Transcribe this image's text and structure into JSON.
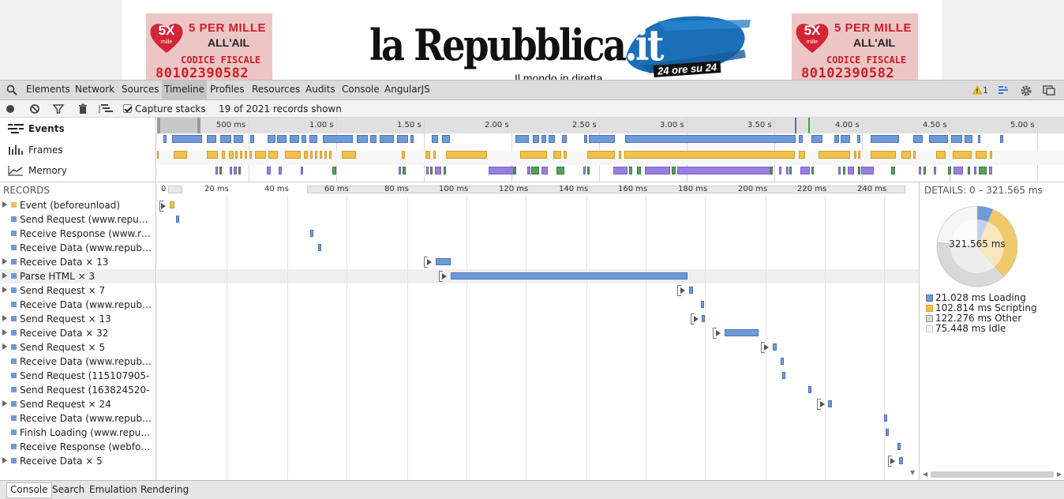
{
  "webpage": {
    "ad_left": {
      "badge": "5X",
      "badge_sub": "mille",
      "line1": "5 PER MILLE",
      "line2": "ALL'AIL",
      "line3": "CODICE FISCALE",
      "line4": "80102390582"
    },
    "ad_right": {
      "badge": "5X",
      "badge_sub": "mille",
      "line1": "5 PER MILLE",
      "line2": "ALL'AIL",
      "line3": "CODICE FISCALE",
      "line4": "80102390582"
    },
    "logo_main": "la Repubblica",
    "logo_dot": ".",
    "logo_it": "it",
    "tagline": "Il mondo in diretta",
    "badge": "24 ore su 24"
  },
  "toolbar": {
    "tabs": [
      "Elements",
      "Network",
      "Sources",
      "Timeline",
      "Profiles",
      "Resources",
      "Audits",
      "Console",
      "AngularJS"
    ],
    "active_tab": "Timeline",
    "warning_count": "1"
  },
  "controls": {
    "capture_label": "Capture stacks",
    "records_shown": "19 of 2021 records shown"
  },
  "overview": {
    "items": [
      "Events",
      "Frames",
      "Memory"
    ],
    "ticks": [
      "500 ms",
      "1.00 s",
      "1.50 s",
      "2.00 s",
      "2.50 s",
      "3.00 s",
      "3.50 s",
      "4.00 s",
      "4.50 s",
      "5.00 s"
    ]
  },
  "records": {
    "header": "RECORDS",
    "ruler_ticks": [
      "0",
      "20 ms",
      "40 ms",
      "60 ms",
      "80 ms",
      "100 ms",
      "120 ms",
      "140 ms",
      "160 ms",
      "180 ms",
      "200 ms",
      "220 ms",
      "240 ms"
    ],
    "rows": [
      {
        "label": "Event (beforeunload)",
        "color": "#f0c04b",
        "expandable": true
      },
      {
        "label": "Send Request (www.repubblica.it)",
        "color": "#6f9ad8",
        "expandable": false
      },
      {
        "label": "Receive Response (www.repubblica.it)",
        "color": "#6f9ad8",
        "expandable": false
      },
      {
        "label": "Receive Data (www.repubblica.it)",
        "color": "#6f9ad8",
        "expandable": false
      },
      {
        "label": "Receive Data × 13",
        "color": "#6f9ad8",
        "expandable": true
      },
      {
        "label": "Parse HTML × 3",
        "color": "#6f9ad8",
        "expandable": true
      },
      {
        "label": "Send Request × 7",
        "color": "#6f9ad8",
        "expandable": true
      },
      {
        "label": "Receive Data (www.repubblica.it)",
        "color": "#6f9ad8",
        "expandable": false
      },
      {
        "label": "Send Request × 13",
        "color": "#6f9ad8",
        "expandable": true
      },
      {
        "label": "Receive Data × 32",
        "color": "#6f9ad8",
        "expandable": true
      },
      {
        "label": "Send Request × 5",
        "color": "#6f9ad8",
        "expandable": true
      },
      {
        "label": "Receive Data (www.repubblica.it)",
        "color": "#6f9ad8",
        "expandable": false
      },
      {
        "label": "Send Request (115107905-",
        "color": "#6f9ad8",
        "expandable": false
      },
      {
        "label": "Send Request (163824520-",
        "color": "#6f9ad8",
        "expandable": false
      },
      {
        "label": "Send Request × 24",
        "color": "#6f9ad8",
        "expandable": true
      },
      {
        "label": "Receive Data (www.repubblica.it)",
        "color": "#6f9ad8",
        "expandable": false
      },
      {
        "label": "Finish Loading (www.repubblica.it)",
        "color": "#6f9ad8",
        "expandable": false
      },
      {
        "label": "Receive Response (webfonts)",
        "color": "#6f9ad8",
        "expandable": false
      },
      {
        "label": "Receive Data × 5",
        "color": "#6f9ad8",
        "expandable": true
      }
    ]
  },
  "details": {
    "title": "DETAILS: 0 – 321.565 ms",
    "total": "321.565 ms",
    "slices": [
      {
        "label": "21.028 ms Loading",
        "value": 21.028,
        "color": "#6f9ad8"
      },
      {
        "label": "102.814 ms Scripting",
        "value": 102.814,
        "color": "#f0c96a"
      },
      {
        "label": "122.276 ms Other",
        "value": 122.276,
        "color": "#d8d8d8"
      },
      {
        "label": "75.448 ms Idle",
        "value": 75.448,
        "color": "#f6f6f6"
      }
    ]
  },
  "drawer": {
    "tabs": [
      "Console",
      "Search",
      "Emulation",
      "Rendering"
    ],
    "active_tab": "Console"
  },
  "colors": {
    "loading": "#6f9ad8",
    "scripting": "#f0c04b",
    "rendering": "#9b7fe0",
    "painting": "#56a05a"
  }
}
